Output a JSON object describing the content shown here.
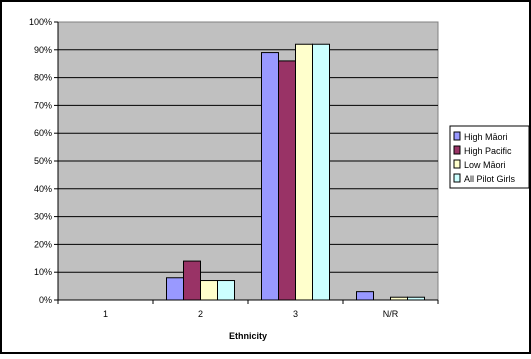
{
  "chart_data": {
    "type": "bar",
    "title": "",
    "xlabel": "Ethnicity",
    "ylabel": "",
    "categories": [
      "1",
      "2",
      "3",
      "N/R"
    ],
    "ylim": [
      0,
      100
    ],
    "y_ticks": [
      "0%",
      "10%",
      "20%",
      "30%",
      "40%",
      "50%",
      "60%",
      "70%",
      "80%",
      "90%",
      "100%"
    ],
    "y_tick_values": [
      0,
      10,
      20,
      30,
      40,
      50,
      60,
      70,
      80,
      90,
      100
    ],
    "grid": true,
    "legend_position": "right",
    "plot_background": "#c0c0c0",
    "series": [
      {
        "name": "High Māori",
        "color": "#9999ff",
        "values": [
          0,
          8,
          89,
          3
        ]
      },
      {
        "name": "High Pacific",
        "color": "#993366",
        "values": [
          0,
          14,
          86,
          0
        ]
      },
      {
        "name": "Low Māori",
        "color": "#ffffcc",
        "values": [
          0,
          7,
          92,
          1
        ]
      },
      {
        "name": "All Pilot Girls",
        "color": "#ccffff",
        "values": [
          0,
          7,
          92,
          1
        ]
      }
    ]
  }
}
